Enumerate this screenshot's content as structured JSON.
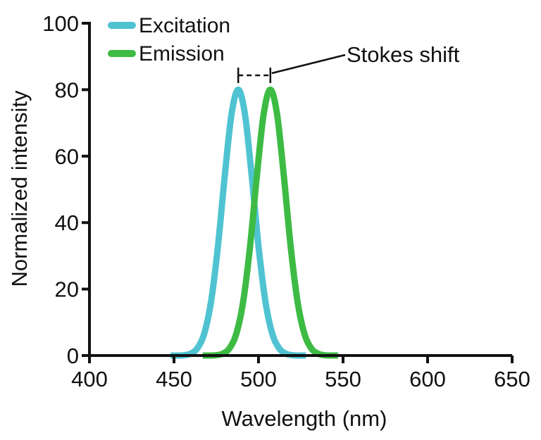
{
  "chart_data": {
    "type": "line",
    "title": "",
    "xlabel": "Wavelength (nm)",
    "ylabel": "Normalized intensity",
    "xlim": [
      400,
      650
    ],
    "ylim": [
      0,
      100
    ],
    "xticks": [
      "400",
      "450",
      "500",
      "550",
      "600",
      "650"
    ],
    "yticks": [
      "0",
      "20",
      "40",
      "60",
      "80",
      "100"
    ],
    "grid": false,
    "legend_position": "top-left",
    "series": [
      {
        "name": "Excitation",
        "color": "#4fc3d1",
        "x": [
          448,
          452,
          456,
          460,
          464,
          468,
          472,
          476,
          480,
          484,
          488,
          492,
          496,
          500,
          504,
          508,
          512,
          516,
          520,
          524,
          528
        ],
        "y": [
          0,
          0,
          0.1,
          0.6,
          2.3,
          6.8,
          16.5,
          32.9,
          53.9,
          72.5,
          80,
          72.5,
          53.9,
          32.9,
          16.5,
          6.8,
          2.3,
          0.6,
          0.1,
          0,
          0
        ]
      },
      {
        "name": "Emission",
        "color": "#3dbb44",
        "x": [
          467,
          471,
          475,
          479,
          483,
          487,
          491,
          495,
          499,
          503,
          507,
          511,
          515,
          519,
          523,
          527,
          531,
          535,
          539,
          543,
          547
        ],
        "y": [
          0,
          0,
          0.1,
          0.6,
          2.3,
          6.8,
          16.5,
          32.9,
          53.9,
          72.5,
          80,
          72.5,
          53.9,
          32.9,
          16.5,
          6.8,
          2.3,
          0.6,
          0.1,
          0,
          0
        ]
      }
    ],
    "annotations": [
      {
        "text": "Stokes shift",
        "from_x": 488,
        "to_x": 507
      }
    ]
  }
}
